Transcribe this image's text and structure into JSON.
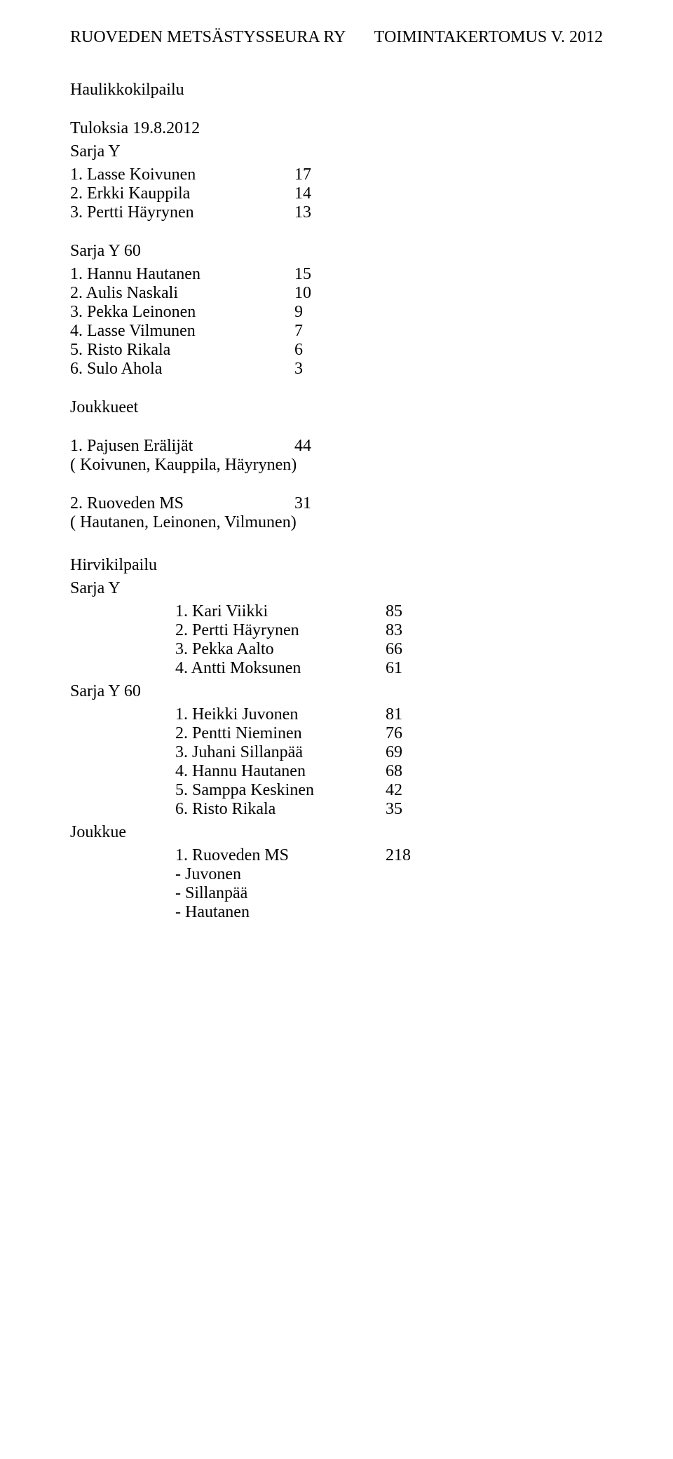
{
  "header": {
    "left": "RUOVEDEN METSÄSTYSSEURA RY",
    "right": "TOIMINTAKERTOMUS V. 2012"
  },
  "haulikko": {
    "title": "Haulikkokilpailu",
    "tuloksia": "Tuloksia 19.8.2012",
    "sarjaY_label": "Sarja Y",
    "sarjaY": [
      {
        "name": "1. Lasse Koivunen",
        "val": "17"
      },
      {
        "name": "2. Erkki Kauppila",
        "val": "14"
      },
      {
        "name": "3. Pertti Häyrynen",
        "val": "13"
      }
    ],
    "sarjaY60_label": "Sarja Y 60",
    "sarjaY60": [
      {
        "name": "1. Hannu Hautanen",
        "val": "15"
      },
      {
        "name": "2. Aulis Naskali",
        "val": "10"
      },
      {
        "name": "3. Pekka Leinonen",
        "val": "9"
      },
      {
        "name": "4. Lasse Vilmunen",
        "val": "7"
      },
      {
        "name": "5. Risto Rikala",
        "val": "6"
      },
      {
        "name": "6. Sulo Ahola",
        "val": "3"
      }
    ],
    "joukkueet_label": "Joukkueet",
    "team1": {
      "name": "1. Pajusen Erälijät",
      "val": "44",
      "members": "( Koivunen, Kauppila, Häyrynen)"
    },
    "team2": {
      "name": "2. Ruoveden MS",
      "val": "31",
      "members": "( Hautanen, Leinonen, Vilmunen)"
    }
  },
  "hirvi": {
    "title": "Hirvikilpailu",
    "sarjaY_label": "Sarja Y",
    "sarjaY": [
      {
        "name": "1. Kari Viikki",
        "val": "85"
      },
      {
        "name": "2. Pertti Häyrynen",
        "val": "83"
      },
      {
        "name": "3. Pekka Aalto",
        "val": "66"
      },
      {
        "name": "4. Antti Moksunen",
        "val": "61"
      }
    ],
    "sarjaY60_label": "Sarja Y 60",
    "sarjaY60": [
      {
        "name": "1. Heikki Juvonen",
        "val": "81"
      },
      {
        "name": "2. Pentti Nieminen",
        "val": "76"
      },
      {
        "name": "3. Juhani Sillanpää",
        "val": "69"
      },
      {
        "name": "4. Hannu Hautanen",
        "val": "68"
      },
      {
        "name": "5. Samppa Keskinen",
        "val": "42"
      },
      {
        "name": "6. Risto Rikala",
        "val": "35"
      }
    ],
    "joukkue_label": "Joukkue",
    "team": {
      "name": "1. Ruoveden MS",
      "val": "218"
    },
    "members": [
      "- Juvonen",
      "- Sillanpää",
      "- Hautanen"
    ]
  }
}
